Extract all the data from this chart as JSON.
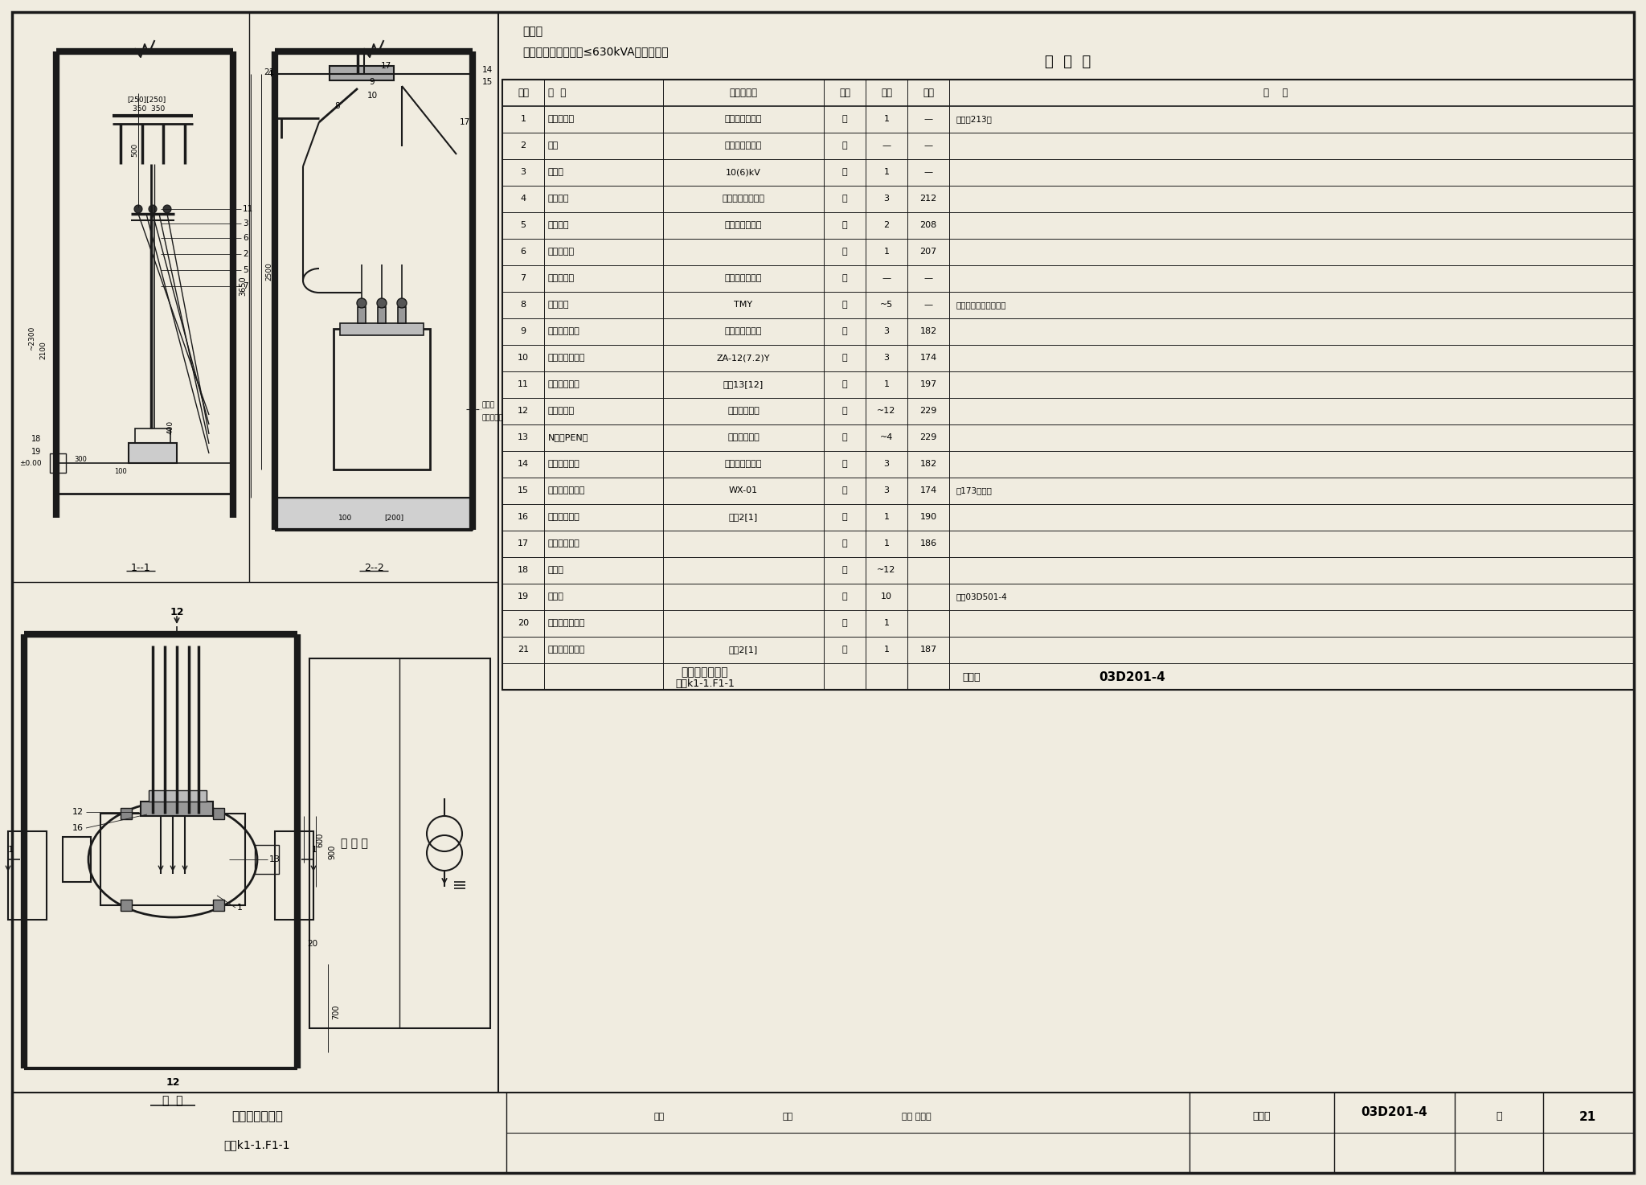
{
  "bg_color": "#f0ece0",
  "note_line1": "说明：",
  "note_line2": "［］内数字用于容量≤630kVA的变压器。",
  "table_title": "明  细  表",
  "table_headers": [
    "序号",
    "名  称",
    "型号及规格",
    "单位",
    "数量",
    "页次",
    "备    注"
  ],
  "table_rows": [
    [
      "1",
      "电力变压器",
      "由工程设计确定",
      "台",
      "1",
      "—",
      "接地见213页"
    ],
    [
      "2",
      "电缆",
      "由工程设计确定",
      "米",
      "—",
      "—",
      ""
    ],
    [
      "3",
      "电缆头",
      "10(6)kV",
      "个",
      "1",
      "—",
      ""
    ],
    [
      "4",
      "接线端子",
      "按电缆芯截面确定",
      "个",
      "3",
      "212",
      ""
    ],
    [
      "5",
      "电缆支架",
      "按电缆外径确定",
      "个",
      "2",
      "208",
      ""
    ],
    [
      "6",
      "电缆头支架",
      "",
      "个",
      "1",
      "207",
      ""
    ],
    [
      "7",
      "电缆保护管",
      "由工程设计确定",
      "米",
      "—",
      "—",
      ""
    ],
    [
      "8",
      "高压母线",
      "TMY",
      "米",
      "~5",
      "—",
      "规格按变压器容量确定"
    ],
    [
      "9",
      "高压母线夹具",
      "按母线截面确定",
      "付",
      "3",
      "182",
      ""
    ],
    [
      "10",
      "高压支柱绝缘子",
      "ZA-12(7.2)Y",
      "个",
      "3",
      "174",
      ""
    ],
    [
      "11",
      "高压母线支架",
      "型式13[12]",
      "个",
      "1",
      "197",
      ""
    ],
    [
      "12",
      "低压相母线",
      "见附录（四）",
      "米",
      "~12",
      "229",
      ""
    ],
    [
      "13",
      "N线或PEN线",
      "见附录（四）",
      "米",
      "~4",
      "229",
      ""
    ],
    [
      "14",
      "低压母线夹具",
      "按母线截面确定",
      "付",
      "3",
      "182",
      ""
    ],
    [
      "15",
      "电车线路绝缘子",
      "WX-01",
      "个",
      "3",
      "174",
      "按173页装配"
    ],
    [
      "16",
      "低压母线支架",
      "型式2[1]",
      "个",
      "1",
      "190",
      ""
    ],
    [
      "17",
      "低压母线夹板",
      "",
      "付",
      "1",
      "186",
      ""
    ],
    [
      "18",
      "接地线",
      "",
      "米",
      "~12",
      "",
      ""
    ],
    [
      "19",
      "固定钩",
      "",
      "个",
      "10",
      "",
      "参见03D501-4"
    ],
    [
      "20",
      "临时接地接线柱",
      "",
      "个",
      "1",
      "",
      ""
    ],
    [
      "21",
      "低压母线穿墙板",
      "型式2[1]",
      "套",
      "1",
      "187",
      ""
    ]
  ]
}
